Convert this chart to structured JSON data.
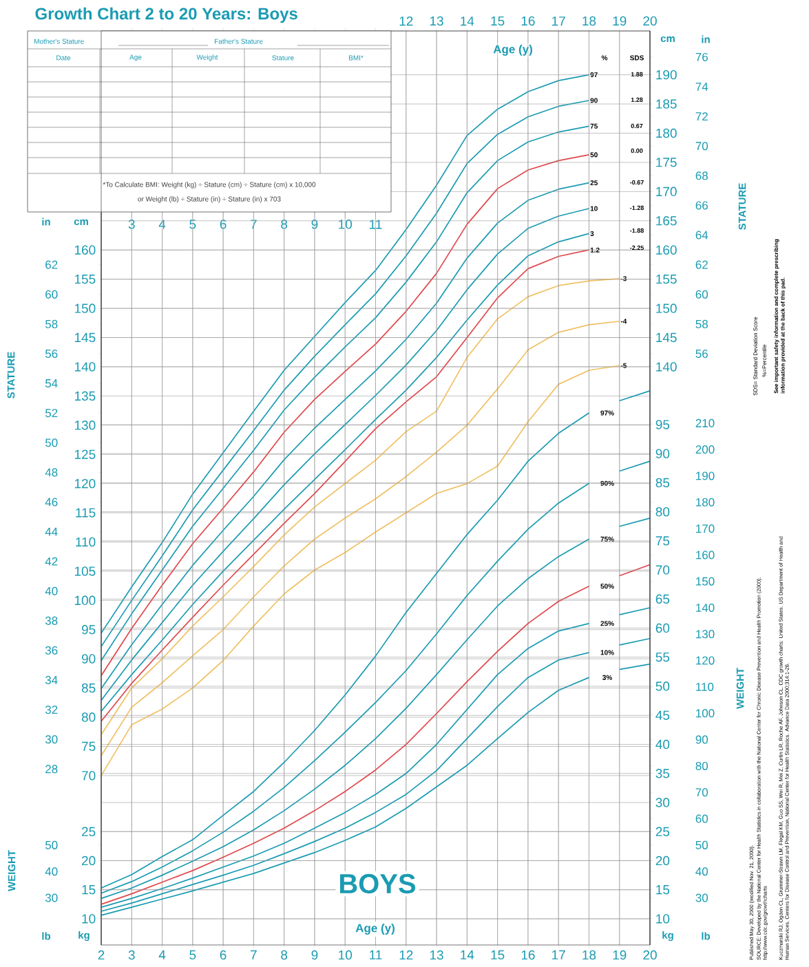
{
  "chart_data": [
    {
      "type": "line",
      "title": "Growth Chart 2 to 20 Years: Boys",
      "xlabel": "Age (y)",
      "ylabel": "STATURE",
      "y2label": "STATURE",
      "x": [
        2,
        3,
        4,
        5,
        6,
        7,
        8,
        9,
        10,
        11,
        12,
        13,
        14,
        15,
        16,
        17,
        18
      ],
      "xlim": [
        2,
        20
      ],
      "xticks": [
        3,
        4,
        5,
        6,
        7,
        8,
        9,
        10,
        11
      ],
      "x2lim": [
        2,
        20
      ],
      "x2ticks": [
        12,
        13,
        14,
        15,
        16,
        17,
        18,
        19,
        20
      ],
      "ylim": [
        41,
        197.5
      ],
      "yticks": [
        70,
        75,
        80,
        85,
        90,
        95,
        100,
        105,
        110,
        115,
        120,
        125,
        130,
        135,
        140,
        145,
        150,
        155,
        160
      ],
      "y2lim": [
        41,
        197.5
      ],
      "y2ticks": [
        140,
        145,
        150,
        155,
        160,
        165,
        170,
        175,
        180,
        185,
        190
      ],
      "y3lim": [
        16.14,
        77.76
      ],
      "y3ticks": [
        28,
        30,
        32,
        34,
        36,
        38,
        40,
        42,
        44,
        46,
        48,
        50,
        52,
        54,
        56,
        58,
        60,
        62
      ],
      "grid": true,
      "series": [
        {
          "name": "97",
          "color": "#1a9bb2",
          "values": [
            94.4,
            102.3,
            109.9,
            118.2,
            125.3,
            132.4,
            139.4,
            145.2,
            151.0,
            156.5,
            163.5,
            171.1,
            179.6,
            184.1,
            187.1,
            189.0,
            190.0
          ]
        },
        {
          "name": "90",
          "color": "#1a9bb2",
          "values": [
            92.1,
            100.0,
            107.6,
            115.5,
            122.3,
            129.1,
            136.0,
            141.8,
            147.2,
            152.5,
            159.0,
            166.3,
            174.8,
            179.8,
            182.8,
            184.6,
            185.6
          ]
        },
        {
          "name": "75",
          "color": "#1a9bb2",
          "values": [
            89.7,
            97.7,
            105.2,
            112.7,
            119.2,
            125.7,
            132.6,
            138.2,
            143.4,
            148.4,
            154.5,
            161.4,
            169.8,
            175.3,
            178.5,
            180.2,
            181.2
          ]
        },
        {
          "name": "50",
          "color": "#e0474c",
          "values": [
            87.1,
            95.2,
            102.6,
            109.7,
            115.8,
            122.0,
            128.8,
            134.4,
            139.2,
            143.9,
            149.5,
            156.0,
            164.4,
            170.5,
            173.7,
            175.3,
            176.3
          ]
        },
        {
          "name": "25",
          "color": "#1a9bb2",
          "values": [
            84.9,
            92.4,
            99.3,
            106.0,
            112.0,
            117.8,
            124.1,
            129.5,
            134.4,
            139.3,
            144.7,
            150.9,
            158.6,
            164.6,
            168.5,
            170.4,
            171.5
          ]
        },
        {
          "name": "10",
          "color": "#1a9bb2",
          "values": [
            82.9,
            89.8,
            96.2,
            102.6,
            108.4,
            114.0,
            119.8,
            125.1,
            130.1,
            135.1,
            140.3,
            146.2,
            153.2,
            159.3,
            163.7,
            165.8,
            167.1
          ]
        },
        {
          "name": "3",
          "color": "#1a9bb2",
          "values": [
            81.0,
            87.3,
            93.2,
            99.3,
            105.0,
            110.3,
            115.6,
            120.7,
            125.8,
            131.0,
            136.0,
            141.6,
            148.0,
            154.0,
            159.0,
            161.4,
            162.8
          ]
        },
        {
          "name": "1.2",
          "color": "#e0474c",
          "values": [
            79.3,
            85.8,
            91.5,
            97.1,
            102.6,
            107.9,
            113.2,
            118.3,
            123.8,
            129.4,
            134.0,
            138.3,
            145.0,
            151.8,
            156.8,
            158.9,
            160.0
          ]
        },
        {
          "name": "-3",
          "color": "#f0c063",
          "x": [
            2,
            3,
            4,
            5,
            6,
            7,
            8,
            9,
            10,
            11,
            12,
            13,
            14,
            15,
            16,
            17,
            18,
            19
          ],
          "values": [
            77.0,
            85.0,
            90.0,
            95.6,
            100.6,
            105.8,
            111.2,
            116.0,
            120.0,
            124.0,
            128.9,
            132.4,
            141.6,
            148.2,
            152.0,
            153.9,
            154.7,
            155.1
          ]
        },
        {
          "name": "-4",
          "color": "#f0c063",
          "x": [
            2,
            3,
            4,
            5,
            6,
            7,
            8,
            9,
            10,
            11,
            12,
            13,
            14,
            15,
            16,
            17,
            18,
            19
          ],
          "values": [
            73.4,
            81.7,
            85.9,
            90.5,
            95.0,
            100.6,
            105.9,
            110.5,
            114.1,
            117.4,
            121.2,
            125.4,
            130.0,
            136.2,
            142.9,
            145.9,
            147.2,
            147.8
          ]
        },
        {
          "name": "-5",
          "color": "#f0c063",
          "x": [
            2,
            3,
            4,
            5,
            6,
            7,
            8,
            9,
            10,
            11,
            12,
            13,
            14,
            15,
            16,
            17,
            18,
            19
          ],
          "values": [
            70.0,
            78.7,
            81.4,
            85.0,
            89.7,
            95.6,
            101.1,
            105.2,
            108.2,
            111.7,
            115.0,
            118.3,
            120.0,
            123.0,
            130.6,
            137.0,
            139.4,
            140.2
          ]
        }
      ],
      "annotations": [
        "in",
        "cm",
        "cm",
        "in",
        "%",
        "SDS",
        "1.88",
        "1.28",
        "0.67",
        "0.00",
        "-0.67",
        "-1.28",
        "-1.88",
        "-2.25"
      ]
    },
    {
      "type": "line",
      "xlabel": "Age (y)",
      "ylabel": "WEIGHT",
      "y2label": "WEIGHT",
      "x": [
        2,
        3,
        4,
        5,
        6,
        7,
        8,
        9,
        10,
        11,
        12,
        13,
        14,
        15,
        16,
        17,
        18,
        18.6,
        19,
        20
      ],
      "xlim": [
        2,
        20
      ],
      "xticks": [
        2,
        3,
        4,
        5,
        6,
        7,
        8,
        9,
        10,
        11,
        12,
        13,
        14,
        15,
        16,
        17,
        18,
        19,
        20
      ],
      "ylim": [
        5.5,
        162.7
      ],
      "yticks": [
        10,
        15,
        20,
        25
      ],
      "y2lim": [
        5.5,
        162.7
      ],
      "y2ticks": [
        10,
        15,
        20,
        25,
        30,
        35,
        40,
        45,
        50,
        55,
        60,
        65,
        70,
        75,
        80,
        85,
        90,
        95
      ],
      "y3lim": [
        12.13,
        358.7
      ],
      "y3ticks": [
        30,
        40,
        50
      ],
      "grid": true,
      "series": [
        {
          "name": "97%",
          "color": "#1a9bb2",
          "values": [
            15.3,
            17.6,
            20.7,
            23.6,
            27.8,
            31.9,
            36.9,
            42.4,
            48.5,
            55.2,
            62.7,
            69.4,
            76.1,
            82.0,
            88.7,
            93.5,
            97.0,
            null,
            99.1,
            100.8
          ]
        },
        {
          "name": "90%",
          "color": "#1a9bb2",
          "values": [
            14.4,
            16.4,
            18.9,
            21.7,
            24.9,
            28.5,
            32.6,
            37.2,
            42.1,
            47.2,
            52.7,
            59.0,
            65.6,
            71.5,
            77.0,
            81.5,
            84.9,
            null,
            87.0,
            88.7
          ]
        },
        {
          "name": "75%",
          "color": "#1a9bb2",
          "values": [
            13.5,
            15.3,
            17.5,
            19.9,
            22.4,
            25.3,
            28.6,
            32.3,
            36.4,
            41.0,
            46.2,
            52.0,
            58.0,
            63.8,
            68.5,
            72.3,
            75.3,
            null,
            77.5,
            78.9
          ]
        },
        {
          "name": "50%",
          "color": "#e0474c",
          "values": [
            12.5,
            14.3,
            16.3,
            18.3,
            20.6,
            23.0,
            25.6,
            28.6,
            31.9,
            35.6,
            40.0,
            45.3,
            50.8,
            56.0,
            60.8,
            64.6,
            67.2,
            null,
            69.0,
            70.9
          ]
        },
        {
          "name": "25%",
          "color": "#1a9bb2",
          "values": [
            12.0,
            13.5,
            15.2,
            17.0,
            18.9,
            20.8,
            23.0,
            25.6,
            28.3,
            31.4,
            35.0,
            40.0,
            46.0,
            52.0,
            56.5,
            59.5,
            60.8,
            null,
            62.3,
            63.5
          ]
        },
        {
          "name": "10%",
          "color": "#1a9bb2",
          "values": [
            11.3,
            12.7,
            14.3,
            15.9,
            17.5,
            19.2,
            21.2,
            23.3,
            25.6,
            28.3,
            31.4,
            35.5,
            41.0,
            46.5,
            51.5,
            54.5,
            55.8,
            null,
            57.1,
            58.2
          ]
        },
        {
          "name": "3%",
          "color": "#1a9bb2",
          "values": [
            10.6,
            12.0,
            13.4,
            14.8,
            16.3,
            17.8,
            19.6,
            21.4,
            23.5,
            25.8,
            29.0,
            32.7,
            36.4,
            41.0,
            45.5,
            49.3,
            51.5,
            null,
            52.9,
            53.8
          ]
        }
      ],
      "annotations": [
        "lb",
        "kg",
        "kg",
        "lb",
        "BOYS"
      ]
    },
    {
      "type": "other",
      "annotations": [
        "Mother's Stature",
        "Father's Stature",
        "Date",
        "Age",
        "Weight",
        "Stature",
        "BMI*",
        "*To Calculate BMI: Weight (kg) ÷ Stature (cm) ÷ Stature (cm) x 10,000",
        "or Weight (lb) ÷ Stature (in) ÷ Stature (in) x 703",
        "SDS= Standard Deviation Score",
        "%=Percentile",
        "See important safety information and complete prescribing information provided at the back of this pad.",
        "Published May 30, 2000 (modified Nov. 21, 2000).",
        "SOURCE: Developed by the National Center for Health Statistics in collaboration with the National Center for Chronic Disease Prevention and Health Promotion (2000). http://www.cdc.gov/growthcharts",
        "Kuczmarski RJ, Ogden CL, Grummer-Strawn LM, Flegal KM, Guo SS, Wei R, Mei Z, Curtin LR, Roche AF, Johnson CL. CDC growth charts: United States. US Department of Health and Human Services, Centers for Disease Control and Prevention, National Center for Health Statistics. Advance Data 2000;314:1-28."
      ]
    },
    {
      "type": "line",
      "xlim": [
        2,
        20
      ],
      "ylim": [
        16.14,
        77.76
      ],
      "yticks": [
        56,
        58,
        60,
        62,
        64,
        66,
        68,
        70,
        72,
        74,
        76
      ],
      "tick_labels": "y"
    },
    {
      "type": "line",
      "xlim": [
        2,
        20
      ],
      "ylim": [
        12.13,
        358.7
      ],
      "yticks": [
        30,
        40,
        50,
        60,
        70,
        80,
        90,
        100,
        110,
        120,
        130,
        140,
        150,
        160,
        170,
        180,
        190,
        200,
        210
      ],
      "tick_labels": "y"
    }
  ]
}
